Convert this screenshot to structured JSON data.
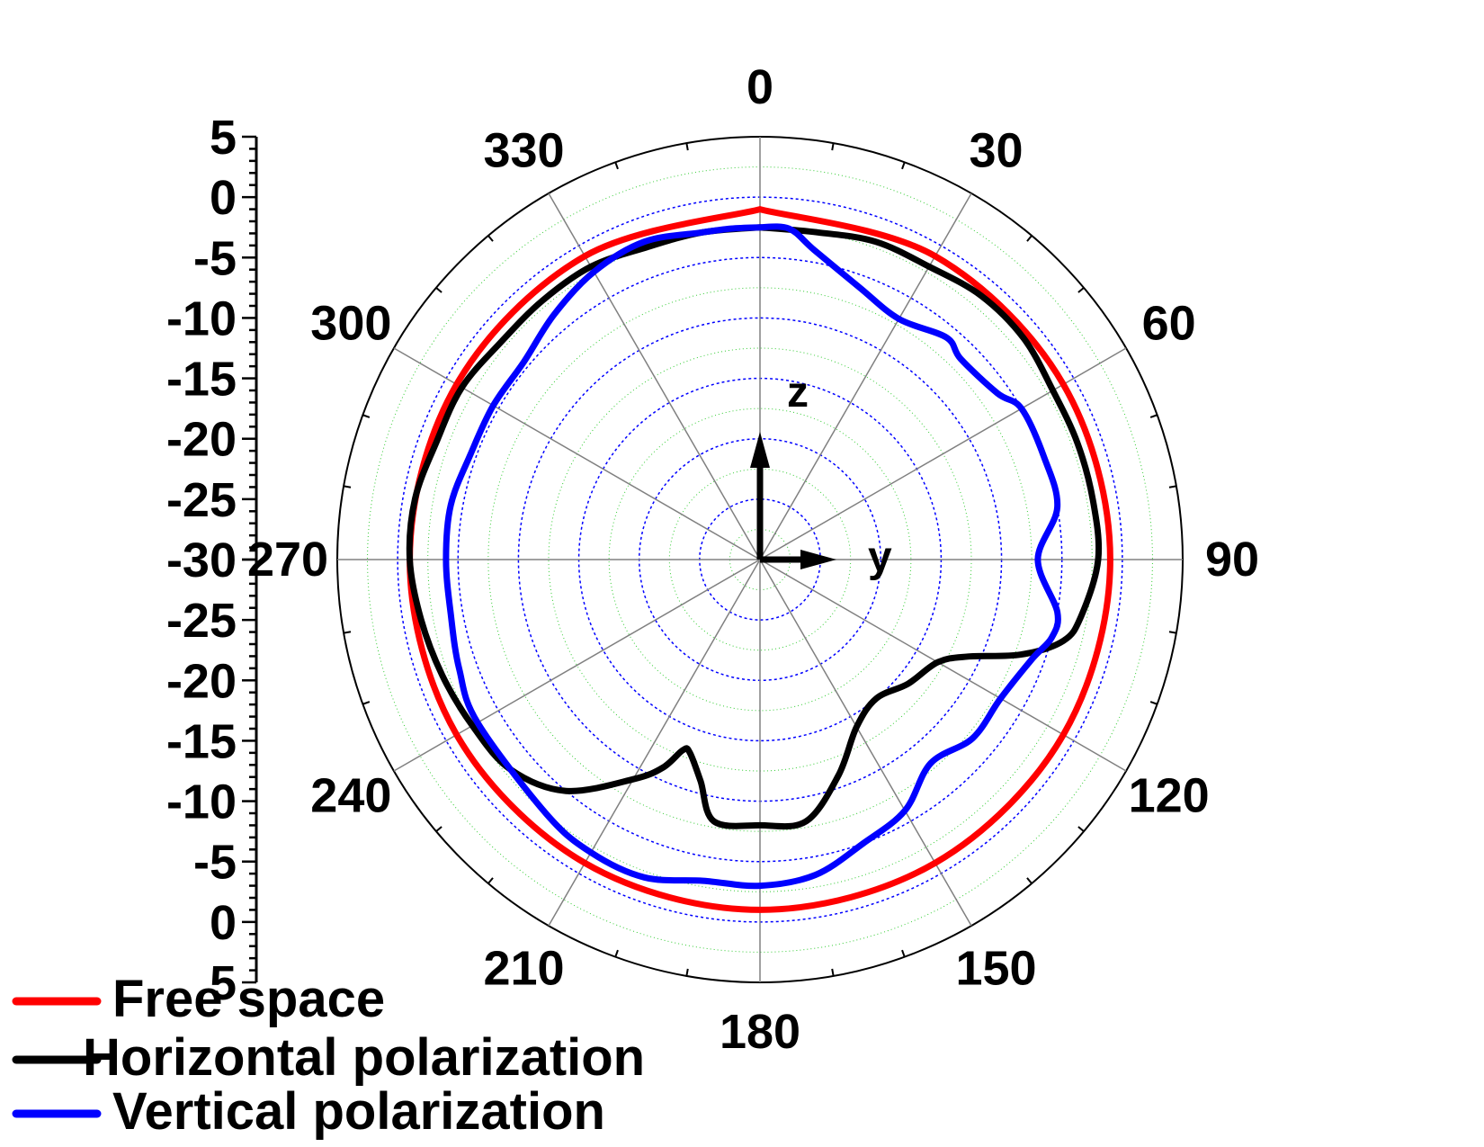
{
  "chart_data": {
    "type": "polar-line",
    "radial_axis": {
      "min": -30,
      "max": 5,
      "ticks": [
        5,
        0,
        -5,
        -10,
        -15,
        -20,
        -25,
        -30
      ],
      "tick_labels": [
        "5",
        "0",
        "-5",
        "-10",
        "-15",
        "-20",
        "-25",
        "-30"
      ]
    },
    "angular_axis": {
      "ticks": [
        0,
        30,
        60,
        90,
        120,
        150,
        180,
        210,
        240,
        270,
        300,
        330
      ],
      "tick_labels": [
        "0",
        "30",
        "60",
        "90",
        "120",
        "150",
        "180",
        "210",
        "240",
        "270",
        "300",
        "330"
      ],
      "direction": "clockwise",
      "zero_at": "top"
    },
    "grid": true,
    "legend_position": "bottom-left",
    "series": [
      {
        "name": "Free space",
        "color": "#ff0000",
        "points": [
          [
            0,
            -1
          ],
          [
            30,
            -1
          ],
          [
            60,
            -1
          ],
          [
            90,
            -1
          ],
          [
            120,
            -1
          ],
          [
            150,
            -1
          ],
          [
            180,
            -1
          ],
          [
            210,
            -1
          ],
          [
            240,
            -1
          ],
          [
            270,
            -1
          ],
          [
            300,
            -1
          ],
          [
            330,
            -1
          ],
          [
            360,
            -1
          ]
        ]
      },
      {
        "name": "Horizontal polarization",
        "color": "#000000",
        "points": [
          [
            0,
            -2.5
          ],
          [
            10,
            -2.5
          ],
          [
            20,
            -2
          ],
          [
            30,
            -2
          ],
          [
            40,
            -1.5
          ],
          [
            50,
            -1.5
          ],
          [
            60,
            -2
          ],
          [
            70,
            -2
          ],
          [
            80,
            -2
          ],
          [
            90,
            -2
          ],
          [
            100,
            -3
          ],
          [
            105,
            -4
          ],
          [
            110,
            -7
          ],
          [
            115,
            -11
          ],
          [
            120,
            -13
          ],
          [
            130,
            -14
          ],
          [
            140,
            -15
          ],
          [
            150,
            -14
          ],
          [
            160,
            -11
          ],
          [
            170,
            -8
          ],
          [
            180,
            -8
          ],
          [
            190,
            -8
          ],
          [
            195,
            -11
          ],
          [
            200,
            -13
          ],
          [
            202,
            -13
          ],
          [
            205,
            -11
          ],
          [
            210,
            -9
          ],
          [
            220,
            -5
          ],
          [
            230,
            -3
          ],
          [
            240,
            -2.5
          ],
          [
            250,
            -2
          ],
          [
            260,
            -1.5
          ],
          [
            270,
            -1
          ],
          [
            280,
            -1
          ],
          [
            290,
            -1.5
          ],
          [
            300,
            -1.5
          ],
          [
            310,
            -2
          ],
          [
            320,
            -2
          ],
          [
            330,
            -2
          ],
          [
            340,
            -2.5
          ],
          [
            350,
            -2.5
          ],
          [
            360,
            -2.5
          ]
        ]
      },
      {
        "name": "Vertical polarization",
        "color": "#0000ff",
        "points": [
          [
            0,
            -2.5
          ],
          [
            5,
            -2.5
          ],
          [
            10,
            -4
          ],
          [
            20,
            -6
          ],
          [
            30,
            -7
          ],
          [
            40,
            -6
          ],
          [
            45,
            -6.5
          ],
          [
            55,
            -6
          ],
          [
            60,
            -5
          ],
          [
            70,
            -5
          ],
          [
            80,
            -5
          ],
          [
            90,
            -7
          ],
          [
            100,
            -5
          ],
          [
            105,
            -5
          ],
          [
            110,
            -6
          ],
          [
            120,
            -7
          ],
          [
            130,
            -7
          ],
          [
            140,
            -8
          ],
          [
            150,
            -6
          ],
          [
            160,
            -5
          ],
          [
            170,
            -3.5
          ],
          [
            180,
            -3
          ],
          [
            190,
            -3
          ],
          [
            200,
            -2
          ],
          [
            210,
            -2
          ],
          [
            220,
            -2.5
          ],
          [
            240,
            -3
          ],
          [
            250,
            -3.5
          ],
          [
            260,
            -4
          ],
          [
            270,
            -4
          ],
          [
            280,
            -4
          ],
          [
            290,
            -4.5
          ],
          [
            300,
            -4.5
          ],
          [
            310,
            -4.5
          ],
          [
            320,
            -3.5
          ],
          [
            330,
            -2.5
          ],
          [
            340,
            -2
          ],
          [
            350,
            -2.5
          ],
          [
            355,
            -2.5
          ],
          [
            360,
            -2.5
          ]
        ]
      }
    ],
    "annotations": [
      "z",
      "y"
    ]
  }
}
